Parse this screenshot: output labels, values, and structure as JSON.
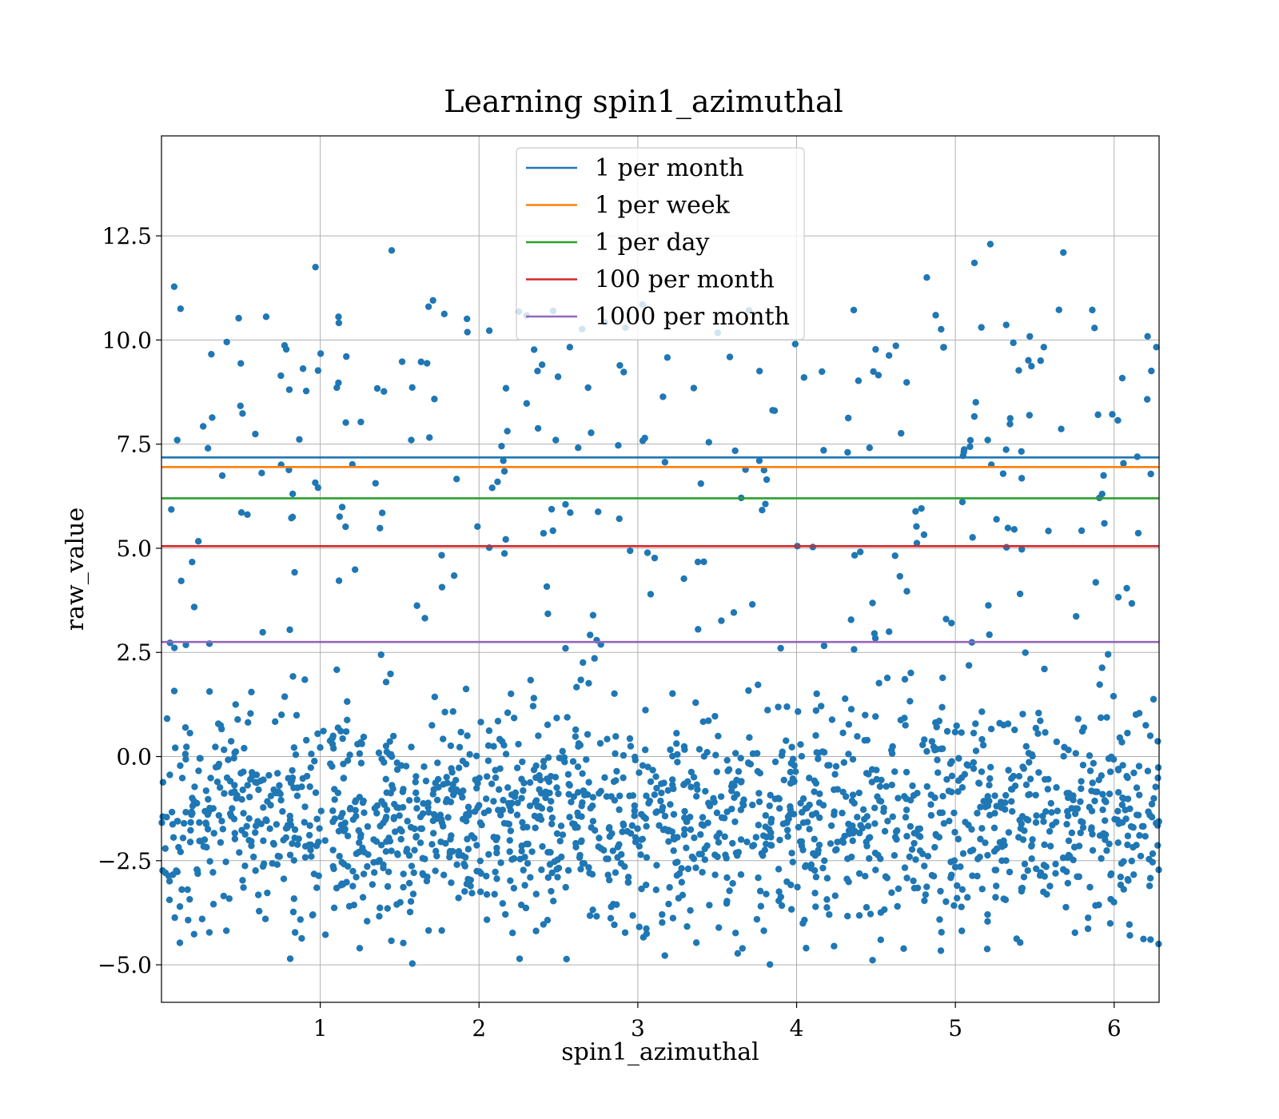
{
  "chart_data": {
    "type": "scatter",
    "title": "Learning spin1_azimuthal",
    "xlabel": "spin1_azimuthal",
    "ylabel": "raw_value",
    "xlim": [
      0,
      6.283
    ],
    "ylim": [
      -5.9,
      14.9
    ],
    "x_ticks": [
      1,
      2,
      3,
      4,
      5,
      6
    ],
    "y_ticks": [
      -5.0,
      -2.5,
      0.0,
      2.5,
      5.0,
      7.5,
      10.0,
      12.5
    ],
    "x_tick_labels": [
      "1",
      "2",
      "3",
      "4",
      "5",
      "6"
    ],
    "y_tick_labels": [
      "−5.0",
      "−2.5",
      "0.0",
      "2.5",
      "5.0",
      "7.5",
      "10.0",
      "12.5"
    ],
    "grid": true,
    "legend_position": "upper-center",
    "scatter_color": "#1f77b4",
    "points_note_visible": "",
    "scatter_summary": {
      "n_points": 2000,
      "x_range": [
        0,
        6.283
      ],
      "dense_band_center": -1.5,
      "dense_band_spread": 1.3,
      "sparse_upper_range": [
        2.0,
        12.3
      ],
      "min_y": -5.0,
      "max_y": 12.3
    },
    "reference_lines": [
      {
        "name": "1 per month",
        "y": 7.18,
        "color": "#1f77b4"
      },
      {
        "name": "1 per week",
        "y": 6.95,
        "color": "#ff7f0e"
      },
      {
        "name": "1 per day",
        "y": 6.2,
        "color": "#2ca02c"
      },
      {
        "name": "100 per month",
        "y": 5.05,
        "color": "#d62728"
      },
      {
        "name": "1000 per month",
        "y": 2.75,
        "color": "#9467bd"
      }
    ],
    "notable_points": [
      {
        "x": 0.97,
        "y": 11.75
      },
      {
        "x": 1.45,
        "y": 12.15
      },
      {
        "x": 0.08,
        "y": 11.28
      },
      {
        "x": 0.12,
        "y": 10.75
      },
      {
        "x": 5.22,
        "y": 12.3
      },
      {
        "x": 5.68,
        "y": 12.1
      },
      {
        "x": 5.12,
        "y": 11.85
      },
      {
        "x": 4.82,
        "y": 11.5
      },
      {
        "x": 1.58,
        "y": -4.97
      },
      {
        "x": 4.06,
        "y": -4.6
      },
      {
        "x": 6.28,
        "y": -4.5
      },
      {
        "x": 4.53,
        "y": -4.4
      },
      {
        "x": 3.03,
        "y": 10.85
      },
      {
        "x": 1.71,
        "y": 10.95
      }
    ]
  }
}
